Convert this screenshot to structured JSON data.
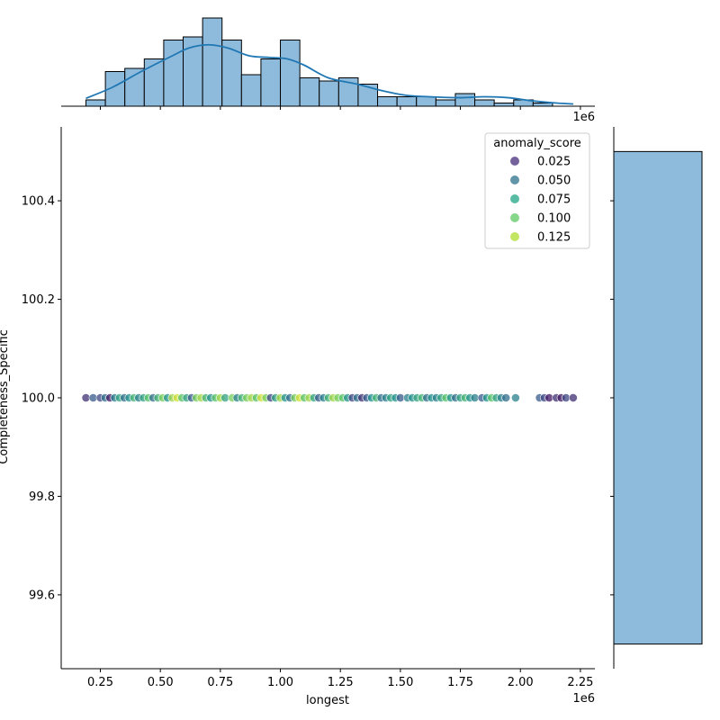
{
  "chart_data": {
    "type": "scatter",
    "subtype": "jointplot",
    "xlabel": "longest",
    "ylabel": "Completeness_Specific",
    "x_offset_label": "1e6",
    "x_ticks": [
      "0.25",
      "0.50",
      "0.75",
      "1.00",
      "1.25",
      "1.50",
      "1.75",
      "2.00",
      "2.25"
    ],
    "y_ticks": [
      "99.6",
      "99.8",
      "100.0",
      "100.2",
      "100.4"
    ],
    "xlim": [
      0.09,
      2.33
    ],
    "ylim": [
      99.45,
      100.55
    ],
    "legend": {
      "title": "anomaly_score",
      "placement": "top-right",
      "entries": [
        "0.025",
        "0.050",
        "0.075",
        "0.100",
        "0.125"
      ],
      "colors": [
        "#472d7b",
        "#2c728e",
        "#21a685",
        "#5ec962",
        "#addc30"
      ]
    },
    "points": [
      {
        "x": 0.19,
        "score": 0.02
      },
      {
        "x": 0.22,
        "score": 0.04
      },
      {
        "x": 0.25,
        "score": 0.03
      },
      {
        "x": 0.27,
        "score": 0.05
      },
      {
        "x": 0.29,
        "score": 0.01
      },
      {
        "x": 0.31,
        "score": 0.06
      },
      {
        "x": 0.33,
        "score": 0.08
      },
      {
        "x": 0.35,
        "score": 0.05
      },
      {
        "x": 0.37,
        "score": 0.07
      },
      {
        "x": 0.39,
        "score": 0.09
      },
      {
        "x": 0.41,
        "score": 0.06
      },
      {
        "x": 0.43,
        "score": 0.08
      },
      {
        "x": 0.45,
        "score": 0.1
      },
      {
        "x": 0.47,
        "score": 0.05
      },
      {
        "x": 0.49,
        "score": 0.09
      },
      {
        "x": 0.51,
        "score": 0.11
      },
      {
        "x": 0.53,
        "score": 0.07
      },
      {
        "x": 0.55,
        "score": 0.12
      },
      {
        "x": 0.57,
        "score": 0.13
      },
      {
        "x": 0.59,
        "score": 0.1
      },
      {
        "x": 0.61,
        "score": 0.08
      },
      {
        "x": 0.63,
        "score": 0.04
      },
      {
        "x": 0.65,
        "score": 0.11
      },
      {
        "x": 0.67,
        "score": 0.12
      },
      {
        "x": 0.69,
        "score": 0.09
      },
      {
        "x": 0.71,
        "score": 0.07
      },
      {
        "x": 0.73,
        "score": 0.1
      },
      {
        "x": 0.75,
        "score": 0.12
      },
      {
        "x": 0.77,
        "score": 0.08
      },
      {
        "x": 0.8,
        "score": 0.11
      },
      {
        "x": 0.82,
        "score": 0.06
      },
      {
        "x": 0.84,
        "score": 0.09
      },
      {
        "x": 0.86,
        "score": 0.11
      },
      {
        "x": 0.88,
        "score": 0.12
      },
      {
        "x": 0.9,
        "score": 0.1
      },
      {
        "x": 0.92,
        "score": 0.13
      },
      {
        "x": 0.94,
        "score": 0.11
      },
      {
        "x": 0.96,
        "score": 0.03
      },
      {
        "x": 0.98,
        "score": 0.08
      },
      {
        "x": 1.0,
        "score": 0.12
      },
      {
        "x": 1.02,
        "score": 0.07
      },
      {
        "x": 1.04,
        "score": 0.05
      },
      {
        "x": 1.06,
        "score": 0.11
      },
      {
        "x": 1.08,
        "score": 0.13
      },
      {
        "x": 1.1,
        "score": 0.1
      },
      {
        "x": 1.12,
        "score": 0.12
      },
      {
        "x": 1.14,
        "score": 0.08
      },
      {
        "x": 1.16,
        "score": 0.04
      },
      {
        "x": 1.18,
        "score": 0.06
      },
      {
        "x": 1.2,
        "score": 0.09
      },
      {
        "x": 1.22,
        "score": 0.12
      },
      {
        "x": 1.24,
        "score": 0.11
      },
      {
        "x": 1.26,
        "score": 0.1
      },
      {
        "x": 1.28,
        "score": 0.07
      },
      {
        "x": 1.3,
        "score": 0.03
      },
      {
        "x": 1.32,
        "score": 0.05
      },
      {
        "x": 1.34,
        "score": 0.02
      },
      {
        "x": 1.36,
        "score": 0.04
      },
      {
        "x": 1.38,
        "score": 0.07
      },
      {
        "x": 1.4,
        "score": 0.09
      },
      {
        "x": 1.42,
        "score": 0.05
      },
      {
        "x": 1.44,
        "score": 0.06
      },
      {
        "x": 1.46,
        "score": 0.08
      },
      {
        "x": 1.48,
        "score": 0.07
      },
      {
        "x": 1.5,
        "score": 0.04
      },
      {
        "x": 1.53,
        "score": 0.06
      },
      {
        "x": 1.55,
        "score": 0.07
      },
      {
        "x": 1.57,
        "score": 0.08
      },
      {
        "x": 1.59,
        "score": 0.09
      },
      {
        "x": 1.61,
        "score": 0.05
      },
      {
        "x": 1.63,
        "score": 0.07
      },
      {
        "x": 1.65,
        "score": 0.06
      },
      {
        "x": 1.67,
        "score": 0.08
      },
      {
        "x": 1.69,
        "score": 0.1
      },
      {
        "x": 1.71,
        "score": 0.07
      },
      {
        "x": 1.73,
        "score": 0.05
      },
      {
        "x": 1.75,
        "score": 0.08
      },
      {
        "x": 1.77,
        "score": 0.09
      },
      {
        "x": 1.79,
        "score": 0.07
      },
      {
        "x": 1.81,
        "score": 0.06
      },
      {
        "x": 1.84,
        "score": 0.04
      },
      {
        "x": 1.86,
        "score": 0.07
      },
      {
        "x": 1.88,
        "score": 0.1
      },
      {
        "x": 1.9,
        "score": 0.08
      },
      {
        "x": 1.92,
        "score": 0.06
      },
      {
        "x": 1.94,
        "score": 0.05
      },
      {
        "x": 1.98,
        "score": 0.06
      },
      {
        "x": 2.08,
        "score": 0.04
      },
      {
        "x": 2.1,
        "score": 0.03
      },
      {
        "x": 2.12,
        "score": 0.01
      },
      {
        "x": 2.15,
        "score": 0.02
      },
      {
        "x": 2.17,
        "score": 0.01
      },
      {
        "x": 2.19,
        "score": 0.03
      },
      {
        "x": 2.22,
        "score": 0.02
      }
    ],
    "point_y": 100.0,
    "histogram": {
      "bin_start": 0.19,
      "bin_width": 0.081,
      "counts": [
        2,
        11,
        12,
        15,
        21,
        22,
        28,
        21,
        10,
        15,
        21,
        9,
        8,
        9,
        7,
        3,
        3,
        3,
        2,
        4,
        2,
        1,
        2,
        1
      ],
      "kde": [
        [
          0.19,
          2.5
        ],
        [
          0.3,
          6
        ],
        [
          0.42,
          11
        ],
        [
          0.55,
          16
        ],
        [
          0.62,
          18.5
        ],
        [
          0.7,
          19.5
        ],
        [
          0.78,
          18.5
        ],
        [
          0.87,
          16
        ],
        [
          0.95,
          15.5
        ],
        [
          1.03,
          15
        ],
        [
          1.1,
          13
        ],
        [
          1.2,
          9
        ],
        [
          1.32,
          7
        ],
        [
          1.42,
          5
        ],
        [
          1.52,
          3.5
        ],
        [
          1.62,
          3
        ],
        [
          1.75,
          2.7
        ],
        [
          1.85,
          3
        ],
        [
          1.95,
          2.7
        ],
        [
          2.05,
          1.7
        ],
        [
          2.15,
          1
        ],
        [
          2.22,
          0.7
        ]
      ]
    },
    "marginal_y": {
      "bin_low": 99.5,
      "bin_high": 100.5,
      "count": 1
    },
    "colors": {
      "hist_fill": "#8ebbdc",
      "kde_line": "#1f77b4",
      "edge": "#000000"
    }
  }
}
